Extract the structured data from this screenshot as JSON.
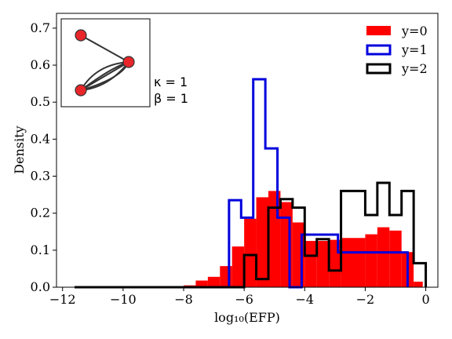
{
  "chart_data": {
    "type": "histogram",
    "xlabel": "log₁₀(EFP)",
    "ylabel": "Density",
    "xlim": [
      -12.2,
      0.4
    ],
    "ylim": [
      0,
      0.74
    ],
    "xticks": [
      -12,
      -10,
      -8,
      -6,
      -4,
      -2,
      0
    ],
    "xtick_labels": [
      "−12",
      "−10",
      "−8",
      "−6",
      "−4",
      "−2",
      "0"
    ],
    "yticks": [
      0.0,
      0.1,
      0.2,
      0.3,
      0.4,
      0.5,
      0.6,
      0.7
    ],
    "ytick_labels": [
      "0.0",
      "0.1",
      "0.2",
      "0.3",
      "0.4",
      "0.5",
      "0.6",
      "0.7"
    ],
    "grid": false,
    "legend_position": "top-right",
    "annotation": {
      "kappa": "κ = 1",
      "beta": "β = 1"
    },
    "series": [
      {
        "name": "y=0",
        "style": "filled",
        "color": "#ff0000",
        "bins": [
          [
            -11.6,
            -8.0,
            0.0
          ],
          [
            -8.0,
            -7.6,
            0.005
          ],
          [
            -7.6,
            -7.2,
            0.018
          ],
          [
            -7.2,
            -6.8,
            0.028
          ],
          [
            -6.8,
            -6.4,
            0.057
          ],
          [
            -6.4,
            -6.0,
            0.11
          ],
          [
            -6.0,
            -5.6,
            0.185
          ],
          [
            -5.6,
            -5.2,
            0.243
          ],
          [
            -5.2,
            -4.8,
            0.26
          ],
          [
            -4.8,
            -4.4,
            0.23
          ],
          [
            -4.4,
            -4.0,
            0.175
          ],
          [
            -4.0,
            -3.6,
            0.125
          ],
          [
            -3.6,
            -3.2,
            0.125
          ],
          [
            -3.2,
            -2.8,
            0.128
          ],
          [
            -2.8,
            -2.4,
            0.133
          ],
          [
            -2.4,
            -2.0,
            0.133
          ],
          [
            -2.0,
            -1.6,
            0.143
          ],
          [
            -1.6,
            -1.2,
            0.162
          ],
          [
            -1.2,
            -0.8,
            0.153
          ],
          [
            -0.8,
            -0.4,
            0.095
          ],
          [
            -0.4,
            -0.1,
            0.015
          ]
        ]
      },
      {
        "name": "y=1",
        "style": "step",
        "color": "#0000dd",
        "bins": [
          [
            -11.6,
            -6.5,
            0.0
          ],
          [
            -6.5,
            -6.1,
            0.235
          ],
          [
            -6.1,
            -5.7,
            0.188
          ],
          [
            -5.7,
            -5.3,
            0.562
          ],
          [
            -5.3,
            -4.9,
            0.375
          ],
          [
            -4.9,
            -4.5,
            0.188
          ],
          [
            -4.5,
            -4.1,
            0.0
          ],
          [
            -4.1,
            -2.9,
            0.142
          ],
          [
            -2.9,
            -0.6,
            0.094
          ]
        ]
      },
      {
        "name": "y=2",
        "style": "step",
        "color": "#000000",
        "bins": [
          [
            -11.6,
            -6.0,
            0.0
          ],
          [
            -6.0,
            -5.6,
            0.087
          ],
          [
            -5.6,
            -5.2,
            0.022
          ],
          [
            -5.2,
            -4.8,
            0.215
          ],
          [
            -4.8,
            -4.4,
            0.238
          ],
          [
            -4.4,
            -4.0,
            0.215
          ],
          [
            -4.0,
            -3.6,
            0.085
          ],
          [
            -3.6,
            -3.2,
            0.13
          ],
          [
            -3.2,
            -2.8,
            0.045
          ],
          [
            -2.8,
            -2.0,
            0.26
          ],
          [
            -2.0,
            -1.6,
            0.195
          ],
          [
            -1.6,
            -1.2,
            0.282
          ],
          [
            -1.2,
            -0.8,
            0.195
          ],
          [
            -0.8,
            -0.4,
            0.26
          ],
          [
            -0.4,
            0.0,
            0.065
          ]
        ]
      }
    ]
  }
}
